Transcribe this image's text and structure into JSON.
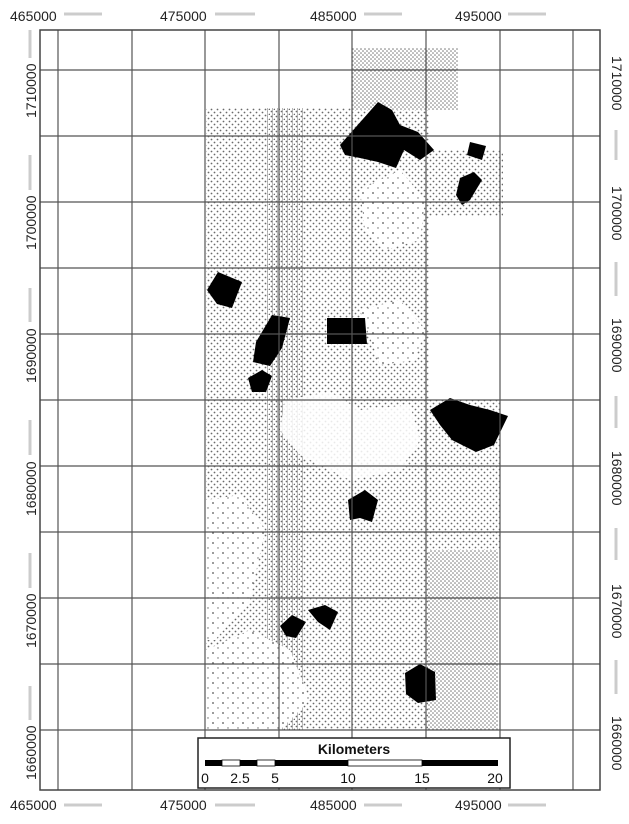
{
  "map": {
    "top_axis_labels": [
      "465000",
      "475000",
      "485000",
      "495000"
    ],
    "bottom_axis_labels": [
      "465000",
      "475000",
      "485000",
      "495000"
    ],
    "left_axis_labels": [
      "1710000",
      "1700000",
      "1690000",
      "1680000",
      "1670000",
      "1660000"
    ],
    "right_axis_labels": [
      "1710000",
      "1700000",
      "1690000",
      "1680000",
      "1670000",
      "1660000"
    ],
    "scale_bar": {
      "title": "Kilometers",
      "tick_labels": [
        "0",
        "2.5",
        "5",
        "10",
        "15",
        "20"
      ]
    },
    "colors": {
      "grid": "#555555",
      "stipple": "#6a6a6a",
      "patch": "#000000",
      "background": "#ffffff"
    }
  }
}
